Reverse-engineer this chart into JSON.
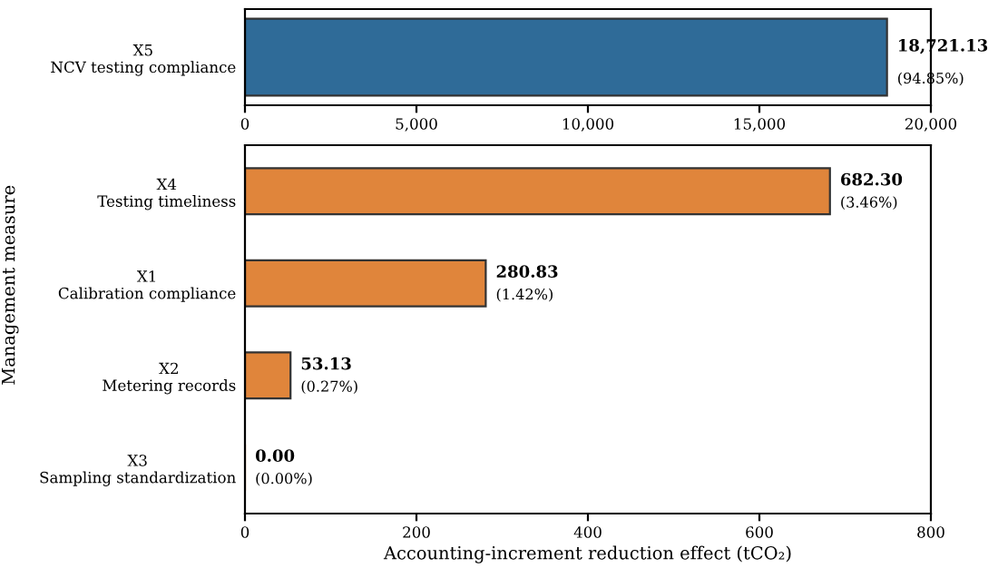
{
  "chart_data": [
    {
      "type": "bar",
      "orientation": "horizontal",
      "categories": [
        "X5\nNCV testing compliance"
      ],
      "series": [
        {
          "color": "#2f6b98",
          "values": [
            18721.13
          ]
        }
      ],
      "value_labels": [
        "18,721.13"
      ],
      "annotations": [
        "(94.85%)"
      ],
      "xlim": [
        0,
        20000
      ],
      "xticks": [
        {
          "value": 0,
          "label": "0"
        },
        {
          "value": 5000,
          "label": "5,000"
        },
        {
          "value": 10000,
          "label": "10,000"
        },
        {
          "value": 15000,
          "label": "15,000"
        },
        {
          "value": 20000,
          "label": "20,000"
        }
      ],
      "grid": false,
      "legend": false
    },
    {
      "type": "bar",
      "orientation": "horizontal",
      "categories": [
        "X4\nTesting timeliness",
        "X1\nCalibration compliance",
        "X2\nMetering records",
        "X3\nSampling standardization"
      ],
      "series": [
        {
          "color": "#e0853b",
          "values": [
            682.3,
            280.83,
            53.13,
            0.0
          ]
        }
      ],
      "value_labels": [
        "682.30",
        "280.83",
        "53.13",
        "0.00"
      ],
      "annotations": [
        "(3.46%)",
        "(1.42%)",
        "(0.27%)",
        "(0.00%)"
      ],
      "xlim": [
        0,
        800
      ],
      "xticks": [
        0,
        200,
        400,
        600,
        800
      ],
      "xlabel": "Accounting-increment reduction effect (tCO₂)",
      "ylabel": "Management measure",
      "grid": false,
      "legend": false
    }
  ]
}
